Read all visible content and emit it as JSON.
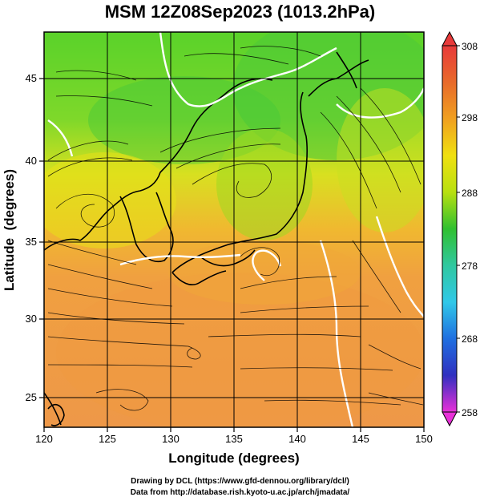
{
  "title": "MSM 12Z08Sep2023 (1013.2hPa)",
  "map": {
    "xlabel": "Longitude (degrees)",
    "ylabel": "Latitude  (degrees)",
    "x_ticks": [
      "120",
      "125",
      "130",
      "135",
      "140",
      "145",
      "150"
    ],
    "y_ticks": [
      "25",
      "30",
      "35",
      "40",
      "45"
    ],
    "lon_range": [
      120,
      150
    ],
    "lat_range": [
      22.4,
      47.6
    ]
  },
  "colorbar": {
    "ticks": [
      "308",
      "298",
      "288",
      "278",
      "268",
      "258"
    ],
    "range": [
      258,
      308
    ],
    "colors": [
      "#e830d8",
      "#3030c0",
      "#1f7fe0",
      "#30c8e8",
      "#30c070",
      "#5ad22a",
      "#b8e010",
      "#f0e010",
      "#f0a020",
      "#e86a2a",
      "#e83a3a"
    ]
  },
  "credits": {
    "line1": "Drawing by DCL (https://www.gfd-dennou.org/library/dcl/)",
    "line2": "Data from http://database.rish.kyoto-u.ac.jp/arch/jmadata/"
  }
}
